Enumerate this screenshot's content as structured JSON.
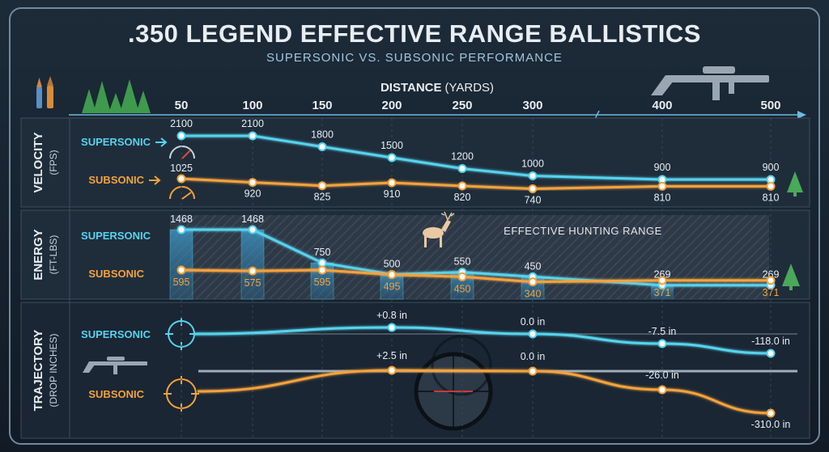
{
  "title": ".350 LEGEND EFFECTIVE RANGE BALLISTICS",
  "subtitle": "SUPERSONIC VS. SUBSONIC PERFORMANCE",
  "colors": {
    "supersonic": "#56d3ee",
    "subsonic": "#f4a23c",
    "title": "#e8edf2",
    "subtitle": "#9fc6dd",
    "panel": "#1f2d3b",
    "band": "#2a3745"
  },
  "icons": [
    "rifle-cartridges-icon",
    "pine-trees-icon",
    "rifle-icon",
    "speedometer-icon",
    "deer-icon",
    "crosshair-icon",
    "scope-reticle-icon",
    "tree-icon"
  ],
  "chart_data": {
    "type": "line",
    "x_axis": {
      "label_bold": "DISTANCE",
      "label_unit": "(YARDS)",
      "ticks": [
        50,
        100,
        150,
        200,
        250,
        300,
        400,
        500
      ]
    },
    "panels": [
      {
        "key": "velocity",
        "title": "VELOCITY",
        "unit": "(FPS)",
        "series": [
          {
            "name": "SUPERSONIC",
            "values": [
              2100,
              2100,
              1800,
              1500,
              1200,
              1000,
              900,
              900
            ],
            "labels": [
              "2100",
              "2100",
              "1800",
              "1500",
              "1200",
              "1000",
              "900",
              "900"
            ]
          },
          {
            "name": "SUBSONIC",
            "values": [
              1025,
              920,
              825,
              910,
              820,
              740,
              810,
              810
            ],
            "labels": [
              "1025",
              "920",
              "825",
              "910",
              "820",
              "740",
              "810",
              "810"
            ]
          }
        ]
      },
      {
        "key": "energy",
        "title": "ENERGY",
        "unit": "(FT-LBS)",
        "annotation": "EFFECTIVE HUNTING RANGE",
        "series": [
          {
            "name": "SUPERSONIC",
            "values": [
              1468,
              1468,
              750,
              500,
              550,
              450,
              269,
              269
            ],
            "labels": [
              "1468",
              "1468",
              "750",
              "500",
              "550",
              "450",
              "269",
              "269"
            ]
          },
          {
            "name": "SUBSONIC",
            "values": [
              595,
              575,
              595,
              495,
              450,
              340,
              371,
              371
            ],
            "labels": [
              "595",
              "575",
              "595",
              "495",
              "450",
              "340",
              "371",
              "371"
            ]
          }
        ]
      },
      {
        "key": "trajectory",
        "title": "TRAJECTORY",
        "unit": "(DROP INCHES)",
        "series": [
          {
            "name": "SUPERSONIC",
            "x": [
              200,
              300,
              400,
              500
            ],
            "values": [
              0.8,
              0.0,
              -7.5,
              -118.0
            ],
            "labels": [
              "+0.8 in",
              "0.0 in",
              "-7.5 in",
              "-118.0 in"
            ]
          },
          {
            "name": "SUBSONIC",
            "x": [
              200,
              300,
              400,
              500
            ],
            "values": [
              2.5,
              0.0,
              -26.0,
              -310.0
            ],
            "labels": [
              "+2.5 in",
              "0.0 in",
              "-26.0 in",
              "-310.0 in"
            ]
          }
        ]
      }
    ]
  }
}
